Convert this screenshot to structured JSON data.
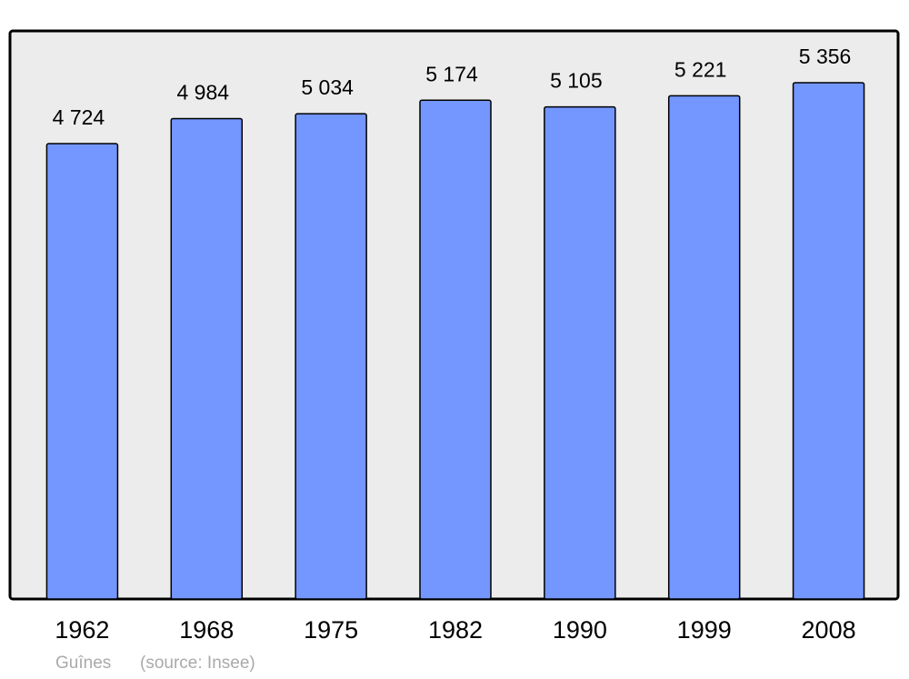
{
  "chart_data": {
    "type": "bar",
    "categories": [
      "1962",
      "1968",
      "1975",
      "1982",
      "1990",
      "1999",
      "2008"
    ],
    "values": [
      4724,
      4984,
      5034,
      5174,
      5105,
      5221,
      5356
    ],
    "value_labels": [
      "4 724",
      "4 984",
      "5 034",
      "5 174",
      "5 105",
      "5 221",
      "5 356"
    ],
    "color": "#7396ff",
    "place": "Guînes",
    "source": "(source: Insee)"
  }
}
